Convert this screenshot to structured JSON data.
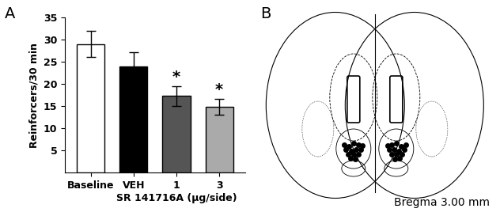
{
  "chart_data": {
    "type": "bar",
    "panel_label": "A",
    "y_label": "Reinforcers/30 min",
    "x_label": "SR 141716A (µg/side)",
    "categories": [
      "Baseline",
      "VEH",
      "1",
      "3"
    ],
    "values": [
      29,
      24,
      17.3,
      14.8
    ],
    "errors": [
      3,
      3.2,
      2.2,
      1.8
    ],
    "colors": [
      "#ffffff",
      "#000000",
      "#555555",
      "#aaaaaa"
    ],
    "annotations": [
      {
        "category": "1",
        "text": "*"
      },
      {
        "category": "3",
        "text": "*"
      }
    ],
    "ylim": [
      0,
      35
    ],
    "yticks": [
      5,
      10,
      15,
      20,
      25,
      30,
      35
    ],
    "grid": false
  },
  "diagram": {
    "panel_label": "B",
    "caption": "Bregma 3.00 mm"
  }
}
